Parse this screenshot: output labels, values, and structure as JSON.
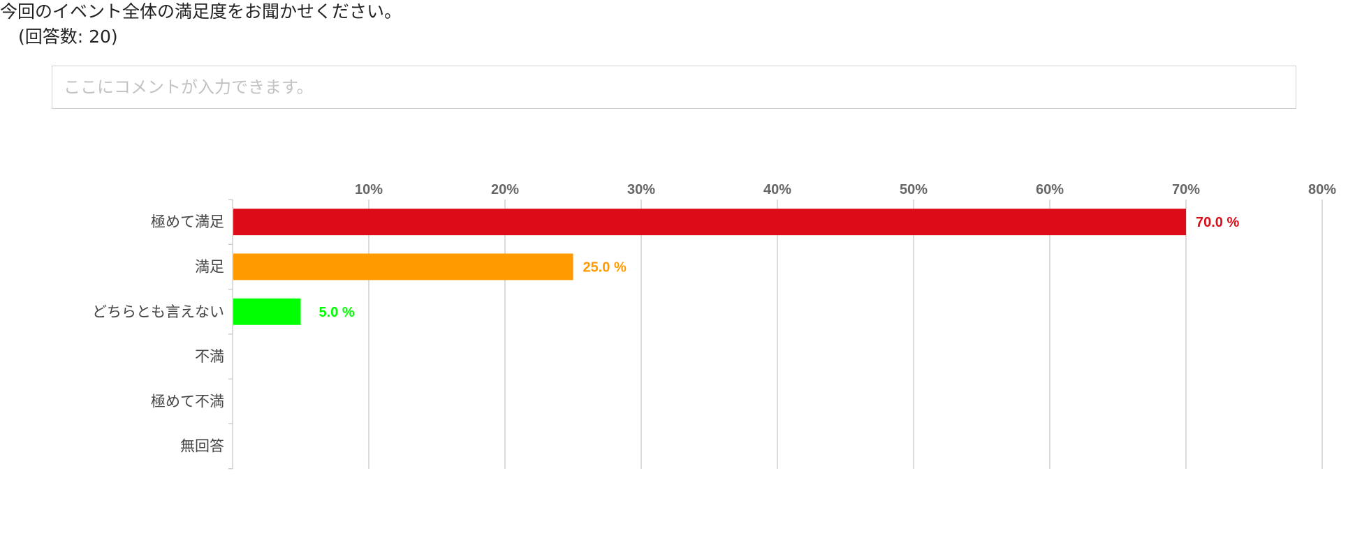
{
  "question": {
    "title": "今回のイベント全体の満足度をお聞かせください。",
    "response_count_text": "(回答数: 20)"
  },
  "comment": {
    "placeholder": "ここにコメントが入力できます。",
    "value": ""
  },
  "colors": {
    "extremely_satisfied": "#dc0b17",
    "satisfied": "#ff9a00",
    "neutral": "#00ff00",
    "grid": "#c8c8c8",
    "tick_text": "#666666",
    "category_text": "#444444"
  },
  "chart_data": {
    "type": "bar",
    "orientation": "horizontal",
    "categories": [
      "極めて満足",
      "満足",
      "どちらとも言えない",
      "不満",
      "極めて不満",
      "無回答"
    ],
    "values": [
      70.0,
      25.0,
      5.0,
      0,
      0,
      0
    ],
    "value_labels": [
      "70.0 %",
      "25.0 %",
      "5.0 %",
      "",
      "",
      ""
    ],
    "colors": [
      "#dc0b17",
      "#ff9a00",
      "#00ff00",
      "#dc0b17",
      "#dc0b17",
      "#dc0b17"
    ],
    "xlim": [
      0,
      80
    ],
    "xticks": [
      10,
      20,
      30,
      40,
      50,
      60,
      70,
      80
    ],
    "xtick_labels": [
      "10%",
      "20%",
      "30%",
      "40%",
      "50%",
      "60%",
      "70%",
      "80%"
    ],
    "grid": true,
    "axis_position": "top",
    "title": "",
    "xlabel": "",
    "ylabel": ""
  }
}
